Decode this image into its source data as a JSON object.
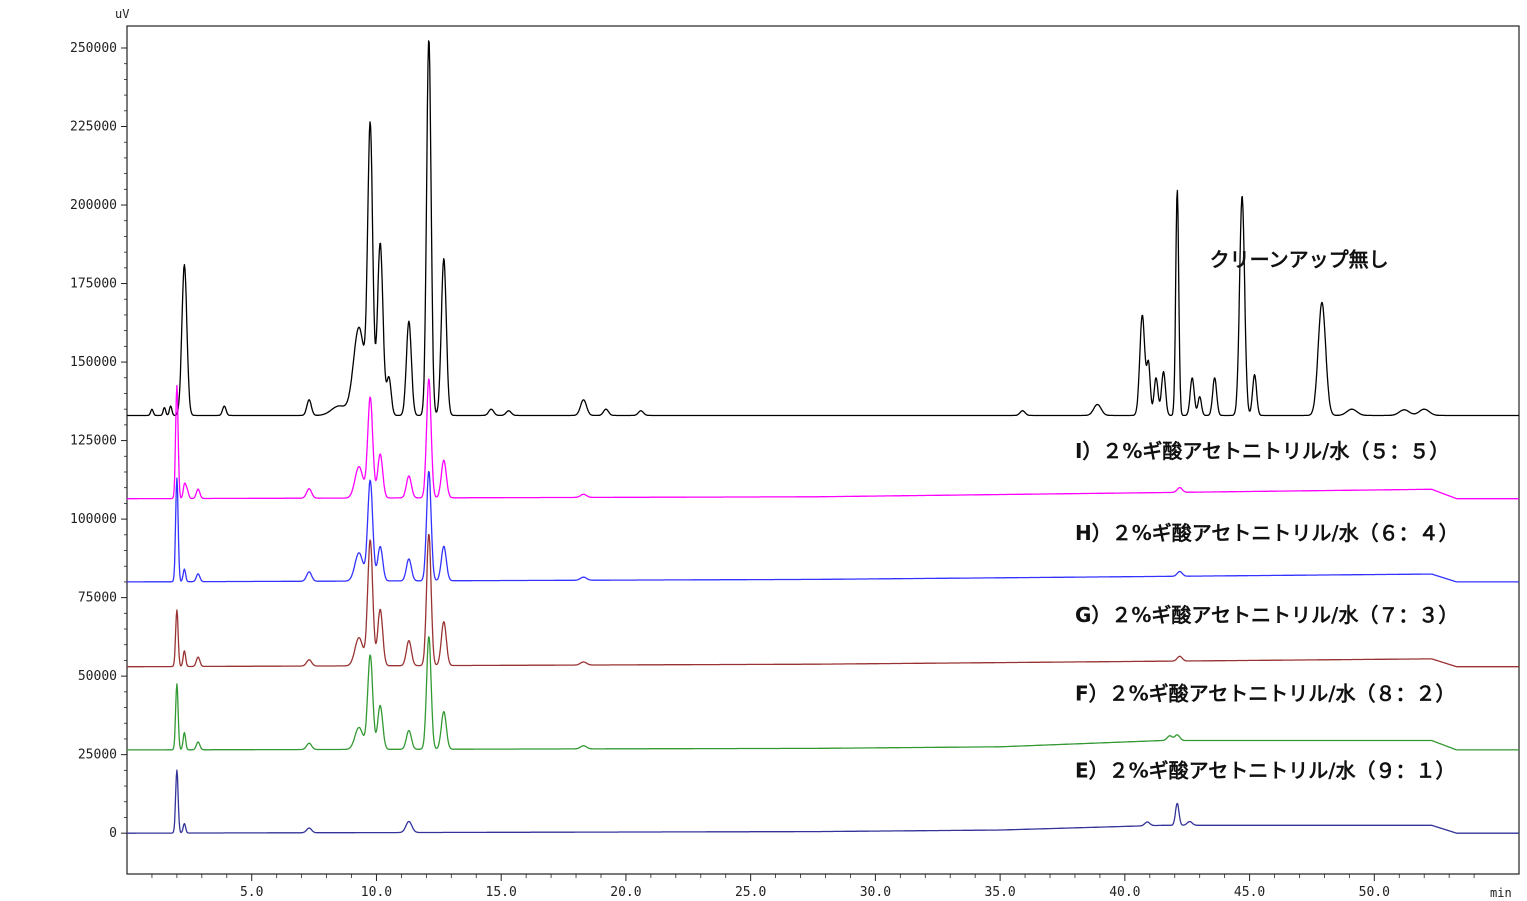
{
  "chart_data": {
    "type": "line",
    "y_unit": "uV",
    "x_unit": "min",
    "xlim": [
      0,
      55.8
    ],
    "ylim": [
      -13000,
      257000
    ],
    "grid": false,
    "legend": "none",
    "x_ticks": [
      {
        "value": 5,
        "label": "5.0"
      },
      {
        "value": 10,
        "label": "10.0"
      },
      {
        "value": 15,
        "label": "15.0"
      },
      {
        "value": 20,
        "label": "20.0"
      },
      {
        "value": 25,
        "label": "25.0"
      },
      {
        "value": 30,
        "label": "30.0"
      },
      {
        "value": 35,
        "label": "35.0"
      },
      {
        "value": 40,
        "label": "40.0"
      },
      {
        "value": 45,
        "label": "45.0"
      },
      {
        "value": 50,
        "label": "50.0"
      }
    ],
    "y_ticks": [
      {
        "value": 0,
        "label": "0"
      },
      {
        "value": 25000,
        "label": "25000"
      },
      {
        "value": 50000,
        "label": "50000"
      },
      {
        "value": 75000,
        "label": "75000"
      },
      {
        "value": 100000,
        "label": "100000"
      },
      {
        "value": 125000,
        "label": "125000"
      },
      {
        "value": 150000,
        "label": "150000"
      },
      {
        "value": 175000,
        "label": "175000"
      },
      {
        "value": 200000,
        "label": "200000"
      },
      {
        "value": 225000,
        "label": "225000"
      },
      {
        "value": 250000,
        "label": "250000"
      }
    ],
    "series": [
      {
        "name": "クリーンアップ無し",
        "color": "#000000",
        "baseline": 133000,
        "baseline_steps": [
          [
            0,
            0
          ],
          [
            52.3,
            0
          ],
          [
            53.3,
            0
          ]
        ],
        "label_x": 43.4,
        "label_y": 180500,
        "peaks": [
          [
            1.0,
            2000,
            0.05
          ],
          [
            1.5,
            2500,
            0.05
          ],
          [
            1.75,
            3000,
            0.05
          ],
          [
            2.3,
            48000,
            0.1
          ],
          [
            3.9,
            3000,
            0.07
          ],
          [
            7.3,
            5000,
            0.09
          ],
          [
            8.5,
            3000,
            0.3
          ],
          [
            9.3,
            28000,
            0.22
          ],
          [
            9.75,
            90000,
            0.1
          ],
          [
            10.15,
            55000,
            0.11
          ],
          [
            10.5,
            12000,
            0.09
          ],
          [
            11.3,
            30000,
            0.1
          ],
          [
            12.1,
            120000,
            0.09
          ],
          [
            12.7,
            50000,
            0.1
          ],
          [
            14.6,
            2000,
            0.1
          ],
          [
            15.3,
            1500,
            0.1
          ],
          [
            18.3,
            5000,
            0.12
          ],
          [
            19.2,
            2000,
            0.1
          ],
          [
            20.6,
            1500,
            0.1
          ],
          [
            35.9,
            1500,
            0.1
          ],
          [
            38.9,
            3500,
            0.15
          ],
          [
            40.7,
            32000,
            0.1
          ],
          [
            40.95,
            16000,
            0.07
          ],
          [
            41.25,
            12000,
            0.08
          ],
          [
            41.55,
            14000,
            0.08
          ],
          [
            42.1,
            72000,
            0.06
          ],
          [
            42.7,
            12000,
            0.08
          ],
          [
            43.0,
            6000,
            0.07
          ],
          [
            43.6,
            12000,
            0.08
          ],
          [
            44.7,
            70000,
            0.1
          ],
          [
            45.2,
            13000,
            0.08
          ],
          [
            47.9,
            36000,
            0.15
          ],
          [
            49.1,
            2000,
            0.2
          ],
          [
            51.2,
            1800,
            0.2
          ],
          [
            52.0,
            2000,
            0.2
          ]
        ]
      },
      {
        "name": "I）２%ギ酸アセトニトリル/水（５：５）",
        "color": "#ff00ff",
        "baseline": 106500,
        "baseline_steps": [
          [
            0,
            0
          ],
          [
            27.6,
            600
          ],
          [
            52.3,
            3000
          ],
          [
            53.3,
            0
          ]
        ],
        "label_x": 38.0,
        "label_y": 119500,
        "peaks": [
          [
            2.0,
            36000,
            0.05
          ],
          [
            2.3,
            4000,
            0.05
          ],
          [
            2.4,
            3000,
            0.06
          ],
          [
            2.85,
            3000,
            0.07
          ],
          [
            7.3,
            3000,
            0.1
          ],
          [
            9.3,
            10000,
            0.16
          ],
          [
            9.75,
            32000,
            0.1
          ],
          [
            10.15,
            14000,
            0.1
          ],
          [
            11.3,
            7000,
            0.1
          ],
          [
            12.1,
            38000,
            0.09
          ],
          [
            12.7,
            12000,
            0.1
          ],
          [
            18.3,
            1000,
            0.12
          ],
          [
            42.2,
            1500,
            0.1
          ]
        ]
      },
      {
        "name": "H）２%ギ酸アセトニトリル/水（６：４）",
        "color": "#3333ff",
        "baseline": 80000,
        "baseline_steps": [
          [
            0,
            0
          ],
          [
            27.6,
            800
          ],
          [
            52.3,
            2500
          ],
          [
            53.3,
            0
          ]
        ],
        "label_x": 38.0,
        "label_y": 93300,
        "peaks": [
          [
            2.0,
            33000,
            0.05
          ],
          [
            2.3,
            4000,
            0.05
          ],
          [
            2.85,
            2500,
            0.07
          ],
          [
            7.3,
            3000,
            0.1
          ],
          [
            9.3,
            9000,
            0.16
          ],
          [
            9.75,
            32000,
            0.1
          ],
          [
            10.15,
            11000,
            0.1
          ],
          [
            11.3,
            7000,
            0.1
          ],
          [
            12.1,
            35000,
            0.09
          ],
          [
            12.7,
            11000,
            0.1
          ],
          [
            18.3,
            1000,
            0.12
          ],
          [
            42.2,
            1500,
            0.1
          ]
        ]
      },
      {
        "name": "G）２%ギ酸アセトニトリル/水（７：３）",
        "color": "#993333",
        "baseline": 53000,
        "baseline_steps": [
          [
            0,
            0
          ],
          [
            27.6,
            800
          ],
          [
            52.3,
            2500
          ],
          [
            53.3,
            0
          ]
        ],
        "label_x": 38.0,
        "label_y": 67300,
        "peaks": [
          [
            2.0,
            18000,
            0.05
          ],
          [
            2.3,
            5000,
            0.05
          ],
          [
            2.85,
            3000,
            0.07
          ],
          [
            7.3,
            2000,
            0.1
          ],
          [
            9.3,
            9000,
            0.16
          ],
          [
            9.75,
            40000,
            0.1
          ],
          [
            10.15,
            18000,
            0.1
          ],
          [
            11.3,
            8000,
            0.1
          ],
          [
            12.1,
            42000,
            0.09
          ],
          [
            12.7,
            14000,
            0.1
          ],
          [
            18.3,
            1000,
            0.12
          ],
          [
            42.2,
            1500,
            0.1
          ]
        ]
      },
      {
        "name": "F）２%ギ酸アセトニトリル/水（８：２）",
        "color": "#339933",
        "baseline": 26500,
        "baseline_steps": [
          [
            0,
            0
          ],
          [
            27.6,
            500
          ],
          [
            35.0,
            1000
          ],
          [
            41.5,
            3000
          ],
          [
            52.3,
            3000
          ],
          [
            53.3,
            0
          ]
        ],
        "label_x": 38.0,
        "label_y": 42300,
        "peaks": [
          [
            2.0,
            21000,
            0.05
          ],
          [
            2.3,
            5500,
            0.05
          ],
          [
            2.85,
            2500,
            0.07
          ],
          [
            7.3,
            2000,
            0.1
          ],
          [
            9.3,
            7000,
            0.16
          ],
          [
            9.75,
            30000,
            0.1
          ],
          [
            10.15,
            14000,
            0.1
          ],
          [
            11.3,
            6000,
            0.1
          ],
          [
            12.1,
            36000,
            0.09
          ],
          [
            12.7,
            12000,
            0.1
          ],
          [
            18.3,
            1000,
            0.12
          ],
          [
            41.8,
            1500,
            0.1
          ],
          [
            42.1,
            1800,
            0.1
          ]
        ]
      },
      {
        "name": "E）２%ギ酸アセトニトリル/水（９：１）",
        "color": "#333399",
        "baseline": 0,
        "baseline_steps": [
          [
            0,
            0
          ],
          [
            27.6,
            500
          ],
          [
            35.0,
            1000
          ],
          [
            41.5,
            2500
          ],
          [
            52.3,
            2500
          ],
          [
            53.3,
            0
          ]
        ],
        "label_x": 38.0,
        "label_y": 17700,
        "peaks": [
          [
            2.0,
            20000,
            0.05
          ],
          [
            2.3,
            3000,
            0.05
          ],
          [
            7.3,
            1500,
            0.1
          ],
          [
            11.3,
            3500,
            0.12
          ],
          [
            40.9,
            1200,
            0.1
          ],
          [
            42.1,
            7000,
            0.07
          ],
          [
            42.6,
            1200,
            0.1
          ]
        ]
      }
    ]
  }
}
